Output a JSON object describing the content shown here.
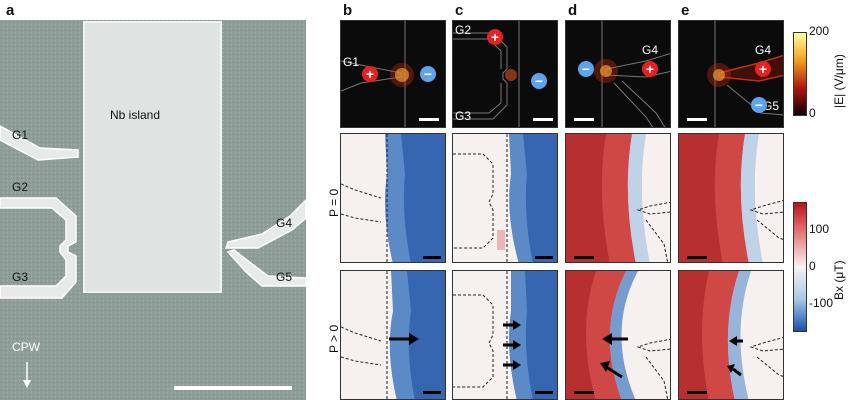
{
  "panels": {
    "a": "a",
    "b": "b",
    "c": "c",
    "d": "d",
    "e": "e"
  },
  "sem": {
    "island_label": "Nb island",
    "gates": [
      "G1",
      "G2",
      "G3",
      "G4",
      "G5"
    ],
    "cpw_label": "CPW"
  },
  "efield": {
    "b": {
      "gates": [
        "G1"
      ],
      "signs": [
        "+",
        "−"
      ]
    },
    "c": {
      "gates": [
        "G2",
        "G3"
      ],
      "signs": [
        "+",
        "−"
      ]
    },
    "d": {
      "gates": [
        "G4"
      ],
      "signs": [
        "−",
        "+"
      ]
    },
    "e": {
      "gates": [
        "G4",
        "G5"
      ],
      "signs": [
        "+",
        "−"
      ]
    }
  },
  "rows": {
    "p0": "P = 0",
    "p1": "P > 0"
  },
  "colorbar_e": {
    "title": "|E| (V/μm)",
    "ticks": [
      "200",
      "0"
    ],
    "colors": [
      "#ffffa0",
      "#e87010",
      "#a01010",
      "#100000"
    ]
  },
  "colorbar_b": {
    "title": "Bx (μT)",
    "ticks": [
      "100",
      "0",
      "-100"
    ],
    "colors": [
      "#b81418",
      "#f4d8d0",
      "#f2f2f2",
      "#a8c8e8",
      "#1850a8"
    ]
  }
}
